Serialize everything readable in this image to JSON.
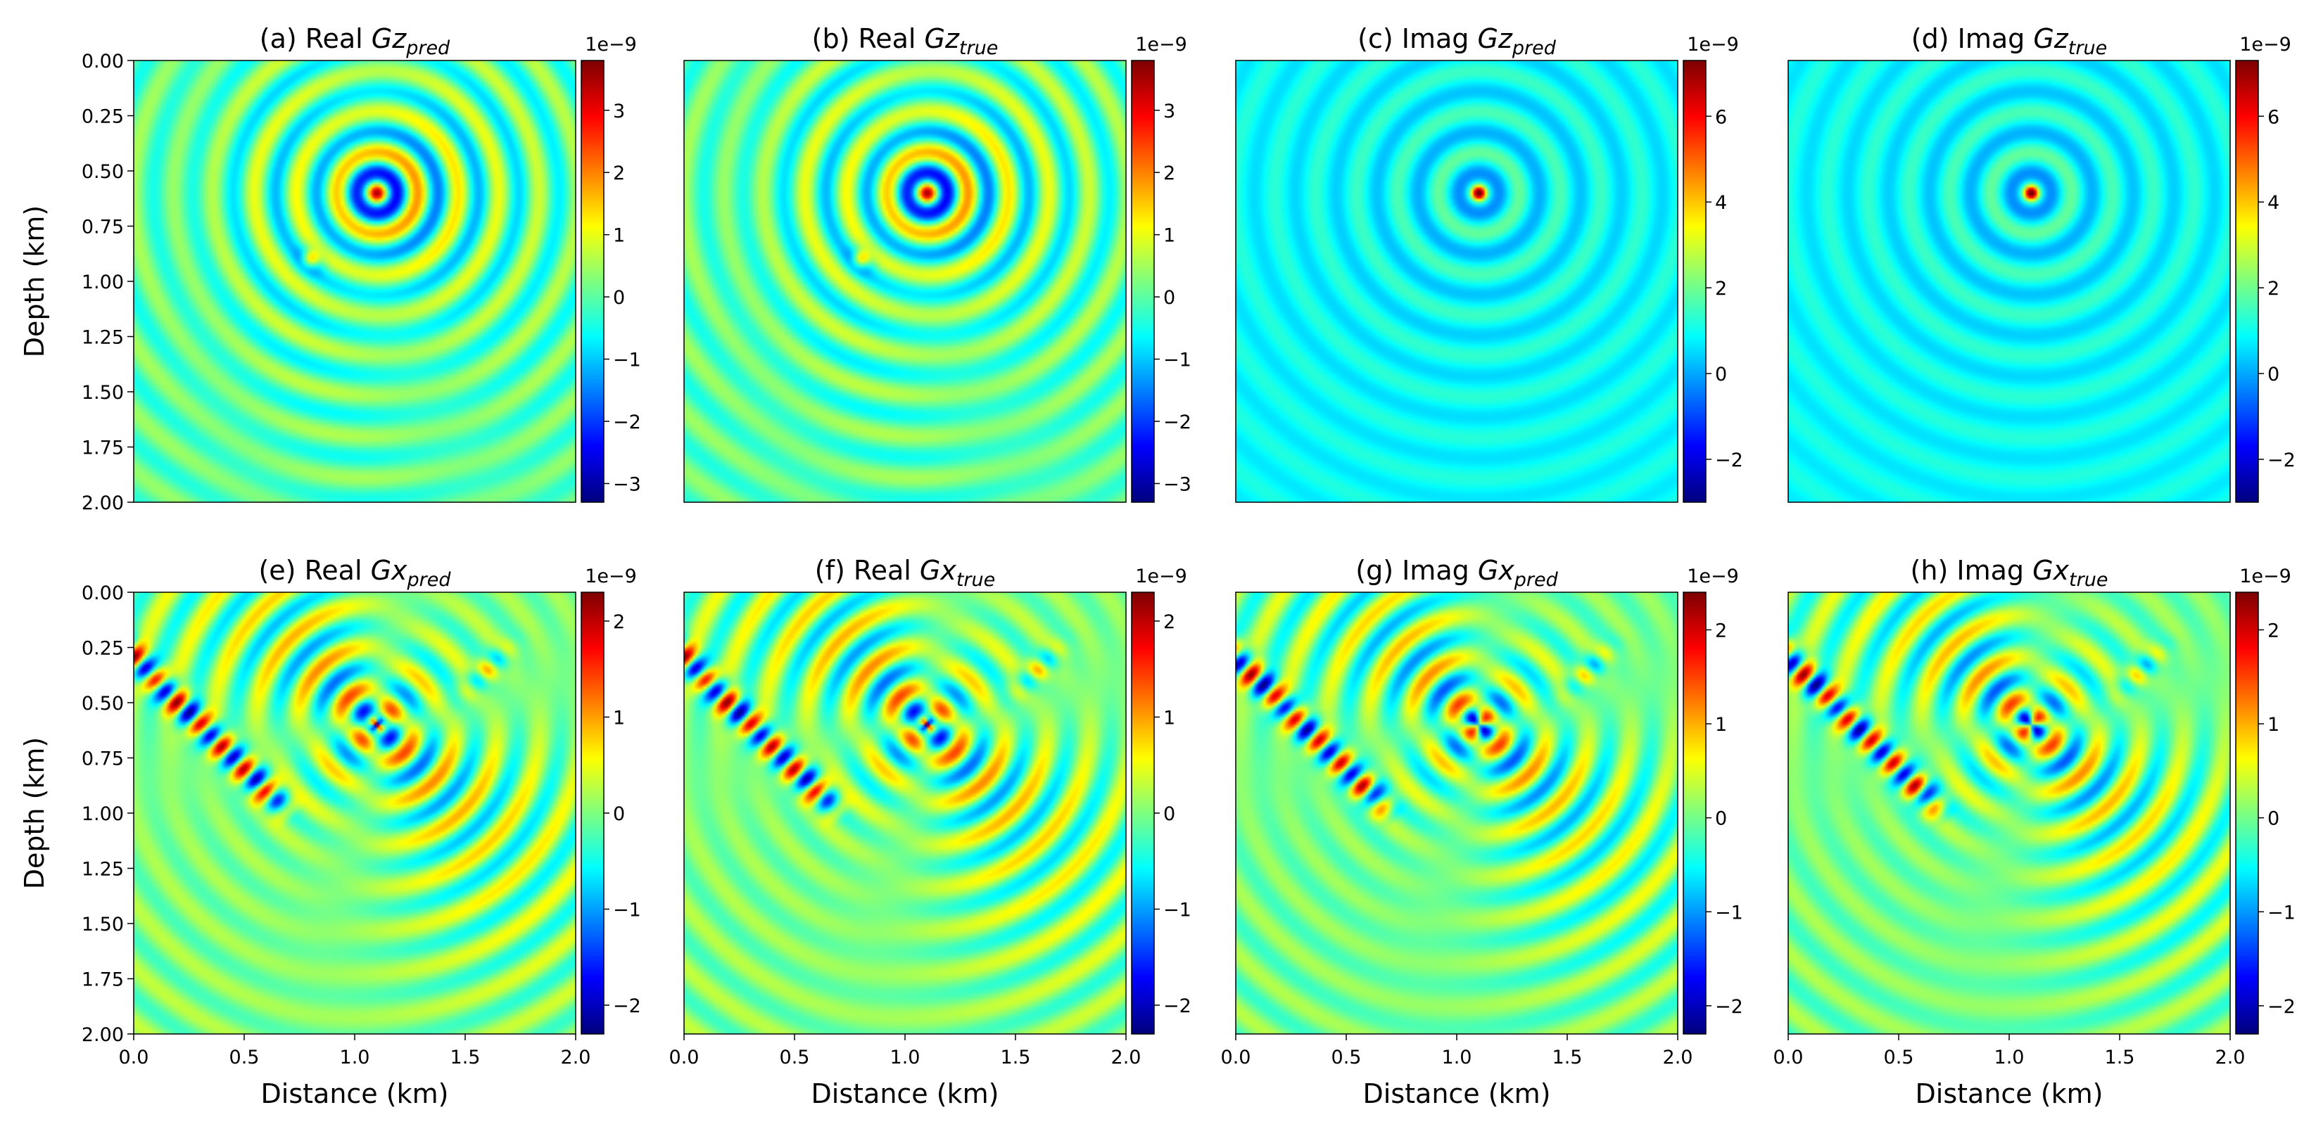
{
  "figure": {
    "colormap": "jet",
    "colormap_stops": [
      "#00007f",
      "#0000ff",
      "#007fff",
      "#00ffff",
      "#7fff7f",
      "#ffff00",
      "#ff7f00",
      "#ff0000",
      "#7f0000"
    ],
    "axis_color": "#000000",
    "background": "#ffffff"
  },
  "chart_data": [
    {
      "id": "a",
      "type": "heatmap",
      "title_prefix": "(a) Real ",
      "title_var": "Gz",
      "title_sub": "pred",
      "xlabel": "",
      "ylabel": "Depth (km)",
      "xlim": [
        0.0,
        2.0
      ],
      "ylim": [
        2.0,
        0.0
      ],
      "xticks": [],
      "yticks": [
        "0.00",
        "0.25",
        "0.50",
        "0.75",
        "1.00",
        "1.25",
        "1.50",
        "1.75",
        "2.00"
      ],
      "yticks_values": [
        0,
        0.25,
        0.5,
        0.75,
        1.0,
        1.25,
        1.5,
        1.75,
        2.0
      ],
      "source": {
        "x": 1.1,
        "depth": 0.6
      },
      "field": "gz",
      "part": "real",
      "colorbar": {
        "scale_label": "1e−9",
        "range": [
          -3.3,
          3.8
        ],
        "ticks": [
          "−3",
          "−2",
          "−1",
          "0",
          "1",
          "2",
          "3"
        ],
        "tick_values": [
          -3,
          -2,
          -1,
          0,
          1,
          2,
          3
        ]
      }
    },
    {
      "id": "b",
      "type": "heatmap",
      "title_prefix": "(b) Real ",
      "title_var": "Gz",
      "title_sub": "true",
      "xlabel": "",
      "ylabel": "",
      "xlim": [
        0.0,
        2.0
      ],
      "ylim": [
        2.0,
        0.0
      ],
      "xticks": [],
      "yticks": [],
      "yticks_values": [],
      "source": {
        "x": 1.1,
        "depth": 0.6
      },
      "field": "gz",
      "part": "real",
      "colorbar": {
        "scale_label": "1e−9",
        "range": [
          -3.3,
          3.8
        ],
        "ticks": [
          "−3",
          "−2",
          "−1",
          "0",
          "1",
          "2",
          "3"
        ],
        "tick_values": [
          -3,
          -2,
          -1,
          0,
          1,
          2,
          3
        ]
      }
    },
    {
      "id": "c",
      "type": "heatmap",
      "title_prefix": "(c) Imag ",
      "title_var": "Gz",
      "title_sub": "pred",
      "xlabel": "",
      "ylabel": "",
      "xlim": [
        0.0,
        2.0
      ],
      "ylim": [
        2.0,
        0.0
      ],
      "xticks": [],
      "yticks": [],
      "yticks_values": [],
      "source": {
        "x": 1.1,
        "depth": 0.6
      },
      "field": "gz",
      "part": "imag",
      "colorbar": {
        "scale_label": "1e−9",
        "range": [
          -3.0,
          7.3
        ],
        "ticks": [
          "−2",
          "0",
          "2",
          "4",
          "6"
        ],
        "tick_values": [
          -2,
          0,
          2,
          4,
          6
        ]
      }
    },
    {
      "id": "d",
      "type": "heatmap",
      "title_prefix": "(d) Imag ",
      "title_var": "Gz",
      "title_sub": "true",
      "xlabel": "",
      "ylabel": "",
      "xlim": [
        0.0,
        2.0
      ],
      "ylim": [
        2.0,
        0.0
      ],
      "xticks": [],
      "yticks": [],
      "yticks_values": [],
      "source": {
        "x": 1.1,
        "depth": 0.6
      },
      "field": "gz",
      "part": "imag",
      "colorbar": {
        "scale_label": "1e−9",
        "range": [
          -3.0,
          7.3
        ],
        "ticks": [
          "−2",
          "0",
          "2",
          "4",
          "6"
        ],
        "tick_values": [
          -2,
          0,
          2,
          4,
          6
        ]
      }
    },
    {
      "id": "e",
      "type": "heatmap",
      "title_prefix": "(e) Real ",
      "title_var": "Gx",
      "title_sub": "pred",
      "xlabel": "Distance (km)",
      "ylabel": "Depth (km)",
      "xlim": [
        0.0,
        2.0
      ],
      "ylim": [
        2.0,
        0.0
      ],
      "xticks": [
        "0.0",
        "0.5",
        "1.0",
        "1.5",
        "2.0"
      ],
      "xticks_values": [
        0,
        0.5,
        1.0,
        1.5,
        2.0
      ],
      "yticks": [
        "0.00",
        "0.25",
        "0.50",
        "0.75",
        "1.00",
        "1.25",
        "1.50",
        "1.75",
        "2.00"
      ],
      "yticks_values": [
        0,
        0.25,
        0.5,
        0.75,
        1.0,
        1.25,
        1.5,
        1.75,
        2.0
      ],
      "source": {
        "x": 1.1,
        "depth": 0.6
      },
      "field": "gx",
      "part": "real",
      "colorbar": {
        "scale_label": "1e−9",
        "range": [
          -2.3,
          2.3
        ],
        "ticks": [
          "−2",
          "−1",
          "0",
          "1",
          "2"
        ],
        "tick_values": [
          -2,
          -1,
          0,
          1,
          2
        ]
      }
    },
    {
      "id": "f",
      "type": "heatmap",
      "title_prefix": "(f) Real ",
      "title_var": "Gx",
      "title_sub": "true",
      "xlabel": "Distance (km)",
      "ylabel": "",
      "xlim": [
        0.0,
        2.0
      ],
      "ylim": [
        2.0,
        0.0
      ],
      "xticks": [
        "0.0",
        "0.5",
        "1.0",
        "1.5",
        "2.0"
      ],
      "xticks_values": [
        0,
        0.5,
        1.0,
        1.5,
        2.0
      ],
      "yticks": [],
      "yticks_values": [],
      "source": {
        "x": 1.1,
        "depth": 0.6
      },
      "field": "gx",
      "part": "real",
      "colorbar": {
        "scale_label": "1e−9",
        "range": [
          -2.3,
          2.3
        ],
        "ticks": [
          "−2",
          "−1",
          "0",
          "1",
          "2"
        ],
        "tick_values": [
          -2,
          -1,
          0,
          1,
          2
        ]
      }
    },
    {
      "id": "g",
      "type": "heatmap",
      "title_prefix": "(g) Imag ",
      "title_var": "Gx",
      "title_sub": "pred",
      "xlabel": "Distance (km)",
      "ylabel": "",
      "xlim": [
        0.0,
        2.0
      ],
      "ylim": [
        2.0,
        0.0
      ],
      "xticks": [
        "0.0",
        "0.5",
        "1.0",
        "1.5",
        "2.0"
      ],
      "xticks_values": [
        0,
        0.5,
        1.0,
        1.5,
        2.0
      ],
      "yticks": [],
      "yticks_values": [],
      "source": {
        "x": 1.1,
        "depth": 0.6
      },
      "field": "gx",
      "part": "imag",
      "colorbar": {
        "scale_label": "1e−9",
        "range": [
          -2.3,
          2.4
        ],
        "ticks": [
          "−2",
          "−1",
          "0",
          "1",
          "2"
        ],
        "tick_values": [
          -2,
          -1,
          0,
          1,
          2
        ]
      }
    },
    {
      "id": "h",
      "type": "heatmap",
      "title_prefix": "(h) Imag ",
      "title_var": "Gx",
      "title_sub": "true",
      "xlabel": "Distance (km)",
      "ylabel": "",
      "xlim": [
        0.0,
        2.0
      ],
      "ylim": [
        2.0,
        0.0
      ],
      "xticks": [
        "0.0",
        "0.5",
        "1.0",
        "1.5",
        "2.0"
      ],
      "xticks_values": [
        0,
        0.5,
        1.0,
        1.5,
        2.0
      ],
      "yticks": [],
      "yticks_values": [],
      "source": {
        "x": 1.1,
        "depth": 0.6
      },
      "field": "gx",
      "part": "imag",
      "colorbar": {
        "scale_label": "1e−9",
        "range": [
          -2.3,
          2.4
        ],
        "ticks": [
          "−2",
          "−1",
          "0",
          "1",
          "2"
        ],
        "tick_values": [
          -2,
          -1,
          0,
          1,
          2
        ]
      }
    }
  ]
}
